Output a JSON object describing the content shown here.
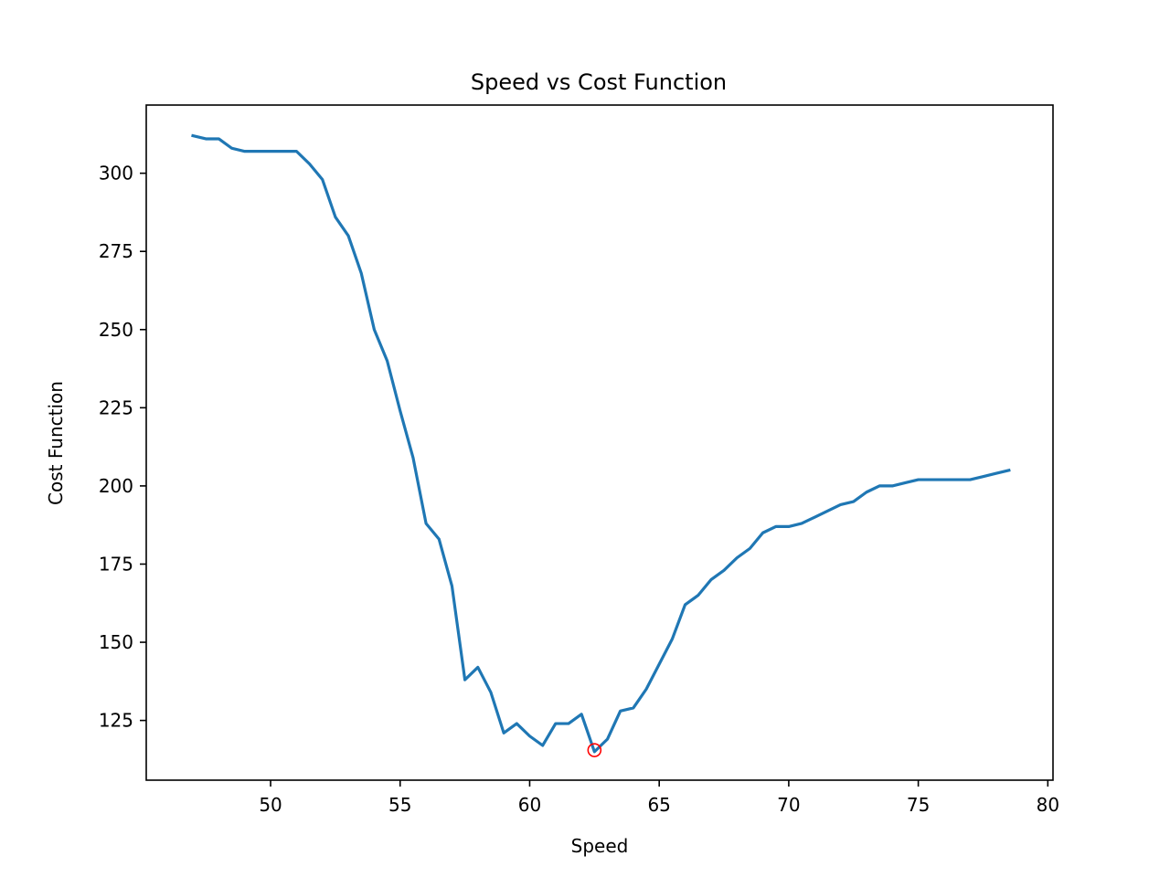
{
  "chart_data": {
    "type": "line",
    "title": "Speed vs Cost Function",
    "xlabel": "Speed",
    "ylabel": "Cost Function",
    "xlim": [
      45.2,
      80.2
    ],
    "ylim": [
      105.9,
      321.8
    ],
    "xticks": [
      "50",
      "55",
      "60",
      "65",
      "70",
      "75",
      "80"
    ],
    "yticks": [
      "125",
      "150",
      "175",
      "200",
      "225",
      "250",
      "275",
      "300"
    ],
    "grid": false,
    "series": [
      {
        "color": "#1f77b4",
        "x": [
          47.0,
          47.5,
          48.0,
          48.5,
          49.0,
          49.5,
          50.0,
          50.5,
          51.0,
          51.5,
          52.0,
          52.5,
          53.0,
          53.5,
          54.0,
          54.5,
          55.0,
          55.5,
          56.0,
          56.5,
          57.0,
          57.5,
          58.0,
          58.5,
          59.0,
          59.5,
          60.0,
          60.5,
          61.0,
          61.5,
          62.0,
          62.5,
          63.0,
          63.5,
          64.0,
          64.5,
          65.0,
          65.5,
          66.0,
          66.5,
          67.0,
          67.5,
          68.0,
          68.5,
          69.0,
          69.5,
          70.0,
          70.5,
          71.0,
          71.5,
          72.0,
          72.5,
          73.0,
          73.5,
          74.0,
          74.5,
          75.0,
          75.5,
          76.0,
          76.5,
          77.0,
          77.5,
          78.0,
          78.5
        ],
        "y": [
          312,
          311,
          311,
          308,
          307,
          307,
          307,
          307,
          307,
          303,
          298,
          286,
          280,
          268,
          250,
          240,
          224,
          209,
          188,
          183,
          168,
          138,
          142,
          134,
          121,
          124,
          120,
          117,
          124,
          124,
          127,
          115,
          119,
          128,
          129,
          135,
          143,
          151,
          162,
          165,
          170,
          173,
          177,
          180,
          185,
          187,
          187,
          188,
          190,
          192,
          194,
          195,
          198,
          200,
          200,
          201,
          202,
          202,
          202,
          202,
          202,
          203,
          204,
          205
        ]
      }
    ],
    "markers": [
      {
        "x": 62.5,
        "y": 115.5,
        "color": "#ff0000",
        "style": "hollow-circle"
      }
    ]
  }
}
